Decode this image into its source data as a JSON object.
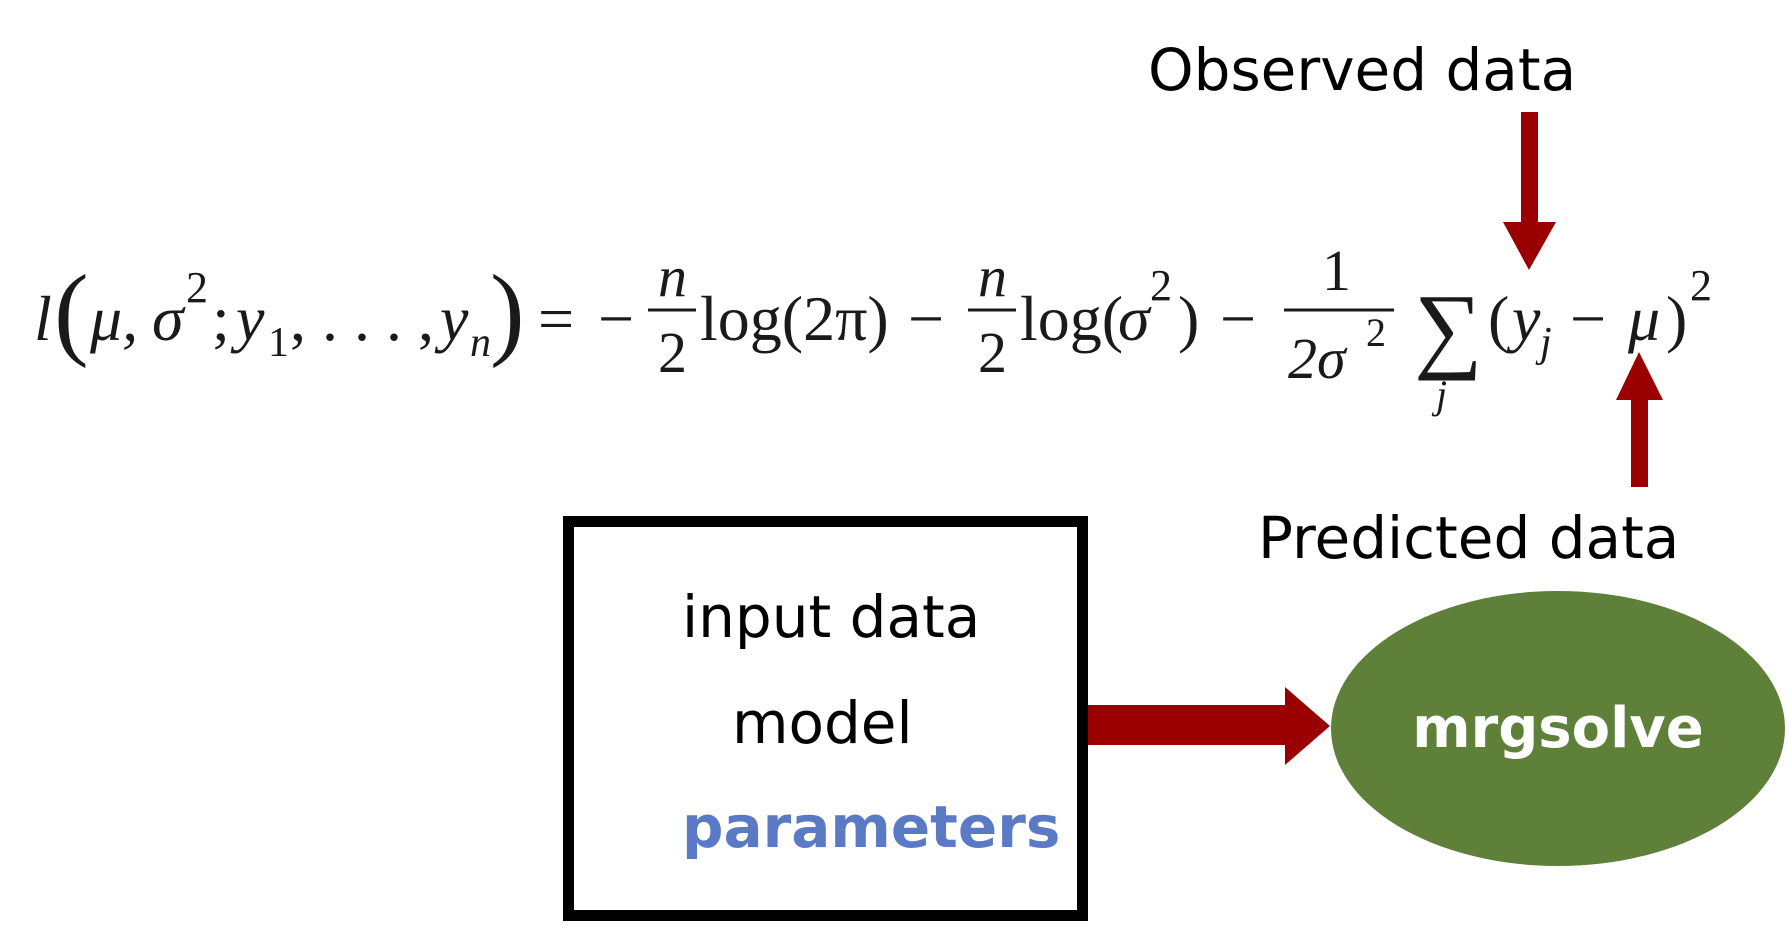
{
  "annotations": {
    "observed": "Observed data",
    "predicted": "Predicted data"
  },
  "equation": {
    "lhs_fn": "l",
    "lhs_args_mu": "μ, ",
    "lhs_args_sigma": "σ",
    "lhs_args_sigma_exp": "2",
    "lhs_args_semi": "; ",
    "lhs_y1": "y",
    "lhs_y1_sub": "1",
    "lhs_dots": ", . . . , ",
    "lhs_yn": "y",
    "lhs_yn_sub": "n",
    "equals": "=",
    "term1_sign": "−",
    "term1_num": "n",
    "term1_den": "2",
    "term1_fn": "log(2π)",
    "term2_sign": "−",
    "term2_num": "n",
    "term2_den": "2",
    "term2_fn_open": "log(",
    "term2_fn_sigma": "σ",
    "term2_fn_exp": "2",
    "term2_fn_close": ")",
    "term3_sign": "−",
    "term3_num": "1",
    "term3_den": "2σ",
    "term3_den_exp": "2",
    "sum_symbol": "∑",
    "sum_index": "j",
    "term3_open": "(",
    "term3_y": "y",
    "term3_y_sub": "j",
    "term3_minus": "−",
    "term3_mu": "μ",
    "term3_close": ")",
    "term3_exp": "2"
  },
  "input_box": {
    "line1": "input data",
    "line2": "model",
    "line3": "parameters"
  },
  "solver": {
    "label": "mrgsolve"
  },
  "colors": {
    "arrow": "#9b0000",
    "solver_fill": "#5e8038",
    "parameters_text": "#5b7ac6",
    "box_border": "#000000"
  }
}
